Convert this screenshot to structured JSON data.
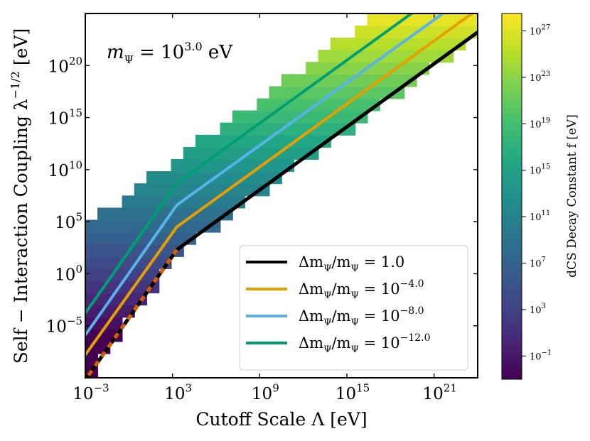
{
  "chart_data": {
    "type": "heatmap",
    "title": "",
    "annotation": {
      "prefix": "m",
      "sub": "Ψ",
      "mid": " = 10",
      "sup": "3.0",
      "suffix": " eV"
    },
    "xlabel": "Cutoff Scale Λ [eV]",
    "ylabel_main": "Self − Interaction Coupling λ",
    "ylabel_sup": "−1/2",
    "ylabel_unit": " [eV]",
    "xscale": "log",
    "yscale": "log",
    "x_log_range": [
      -3,
      24
    ],
    "y_log_range": [
      -10,
      25
    ],
    "x_ticks": [
      {
        "exp": -3,
        "label": "10",
        "sup": "−3"
      },
      {
        "exp": 3,
        "label": "10",
        "sup": "3"
      },
      {
        "exp": 9,
        "label": "10",
        "sup": "9"
      },
      {
        "exp": 15,
        "label": "10",
        "sup": "15"
      },
      {
        "exp": 21,
        "label": "10",
        "sup": "21"
      }
    ],
    "y_ticks": [
      {
        "exp": -5,
        "label": "10",
        "sup": "−5"
      },
      {
        "exp": 0,
        "label": "10",
        "sup": "0"
      },
      {
        "exp": 5,
        "label": "10",
        "sup": "5"
      },
      {
        "exp": 10,
        "label": "10",
        "sup": "10"
      },
      {
        "exp": 15,
        "label": "10",
        "sup": "15"
      },
      {
        "exp": 20,
        "label": "10",
        "sup": "20"
      }
    ],
    "colorbar": {
      "label": "dCS Decay Constant f [eV]",
      "colormap": "viridis",
      "log_range": [
        -3,
        28.5
      ],
      "ticks": [
        {
          "exp": -1,
          "label": "10",
          "sup": "−1"
        },
        {
          "exp": 3,
          "label": "10",
          "sup": "3"
        },
        {
          "exp": 7,
          "label": "10",
          "sup": "7"
        },
        {
          "exp": 11,
          "label": "10",
          "sup": "11"
        },
        {
          "exp": 15,
          "label": "10",
          "sup": "15"
        },
        {
          "exp": 19,
          "label": "10",
          "sup": "19"
        },
        {
          "exp": 23,
          "label": "10",
          "sup": "23"
        },
        {
          "exp": 27,
          "label": "10",
          "sup": "27"
        }
      ]
    },
    "legend_position": "lower-right",
    "series": [
      {
        "name_pre": "Δm",
        "name_sub": "Ψ",
        "name_mid": "/m",
        "name_sub2": "Ψ",
        "name_post": " = 1.0",
        "name_sup": "",
        "color": "#000000",
        "x": [
          -3,
          3.3,
          24
        ],
        "y": [
          -10.2,
          2.3,
          23.2
        ]
      },
      {
        "name_pre": "Δm",
        "name_sub": "Ψ",
        "name_mid": "/m",
        "name_sub2": "Ψ",
        "name_post": " = 10",
        "name_sup": "−4.0",
        "color": "#e69f00",
        "x": [
          -3,
          3.3,
          24
        ],
        "y": [
          -7.8,
          4.5,
          25.4
        ]
      },
      {
        "name_pre": "Δm",
        "name_sub": "Ψ",
        "name_mid": "/m",
        "name_sub2": "Ψ",
        "name_post": " = 10",
        "name_sup": "−8.0",
        "color": "#56b4e9",
        "x": [
          -3,
          3.3,
          24
        ],
        "y": [
          -5.9,
          6.6,
          27.4
        ]
      },
      {
        "name_pre": "Δm",
        "name_sub": "Ψ",
        "name_mid": "/m",
        "name_sub2": "Ψ",
        "name_post": " = 10",
        "name_sup": "−12.0",
        "color": "#009e73",
        "x": [
          -3,
          3.3,
          24
        ],
        "y": [
          -3.8,
          8.7,
          29.6
        ]
      }
    ],
    "dashed_overlay": {
      "color_a": "#000000",
      "color_b": "#d55e00",
      "x": [
        -3,
        3.3
      ],
      "y": [
        -10.2,
        2.3
      ]
    }
  }
}
